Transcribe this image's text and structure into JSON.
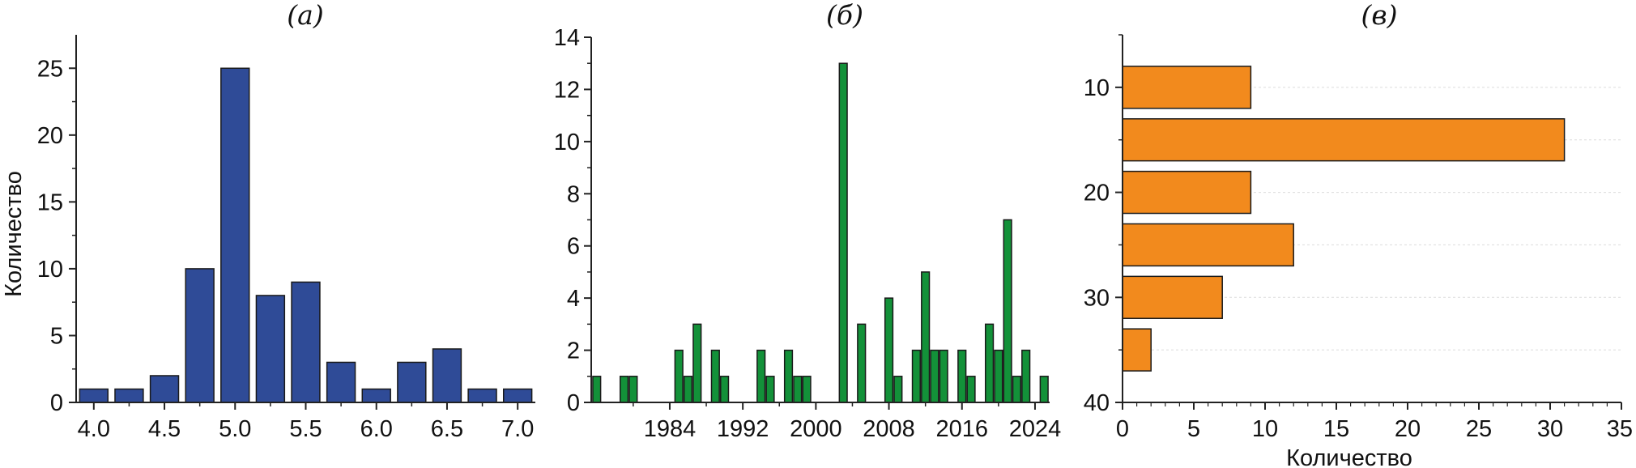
{
  "chart_data": [
    {
      "panel": "a",
      "title": "(а)",
      "type": "bar",
      "orientation": "vertical",
      "ylabel": "Количество",
      "xlabel": "",
      "x": [
        4.0,
        4.25,
        4.5,
        4.75,
        5.0,
        5.25,
        5.5,
        5.75,
        6.0,
        6.25,
        6.5,
        6.75,
        7.0
      ],
      "values": [
        1,
        1,
        2,
        10,
        25,
        8,
        9,
        3,
        1,
        3,
        4,
        1,
        1
      ],
      "xticks": [
        "4.0",
        "4.5",
        "5.0",
        "5.5",
        "6.0",
        "6.5",
        "7.0"
      ],
      "yticks": [
        "0",
        "5",
        "10",
        "15",
        "20",
        "25"
      ],
      "xlim": [
        3.875,
        7.125
      ],
      "ylim": [
        0,
        27.5
      ],
      "color": "#2f4b97",
      "grid": false
    },
    {
      "panel": "b",
      "title": "(б)",
      "type": "bar",
      "orientation": "vertical",
      "ylabel": "",
      "xlabel": "",
      "x": [
        1976,
        1979,
        1980,
        1985,
        1986,
        1987,
        1989,
        1990,
        1994,
        1995,
        1997,
        1998,
        1999,
        2003,
        2005,
        2008,
        2009,
        2011,
        2012,
        2013,
        2014,
        2016,
        2017,
        2019,
        2020,
        2021,
        2022,
        2023,
        2025
      ],
      "values": [
        1,
        1,
        1,
        2,
        1,
        3,
        2,
        1,
        2,
        1,
        2,
        1,
        1,
        13,
        3,
        4,
        1,
        2,
        5,
        2,
        2,
        2,
        1,
        3,
        2,
        7,
        1,
        2,
        1
      ],
      "xticks": [
        "1984",
        "1992",
        "2000",
        "2008",
        "2016",
        "2024"
      ],
      "yticks": [
        "0",
        "2",
        "4",
        "6",
        "8",
        "10",
        "12",
        "14"
      ],
      "xlim": [
        1975.4,
        2025.6
      ],
      "ylim": [
        0,
        14
      ],
      "color": "#139139",
      "grid": false
    },
    {
      "panel": "c",
      "title": "(в)",
      "type": "bar",
      "orientation": "horizontal",
      "xlabel": "Количество",
      "ylabel": "",
      "y": [
        10,
        15,
        20,
        25,
        30,
        35
      ],
      "values": [
        9,
        31,
        9,
        12,
        7,
        2
      ],
      "xticks": [
        "0",
        "5",
        "10",
        "15",
        "20",
        "25",
        "30",
        "35"
      ],
      "yticks": [
        "10",
        "20",
        "30",
        "40"
      ],
      "xlim": [
        0,
        35
      ],
      "ylim": [
        5,
        40
      ],
      "color": "#f28a1d",
      "grid": true
    }
  ]
}
